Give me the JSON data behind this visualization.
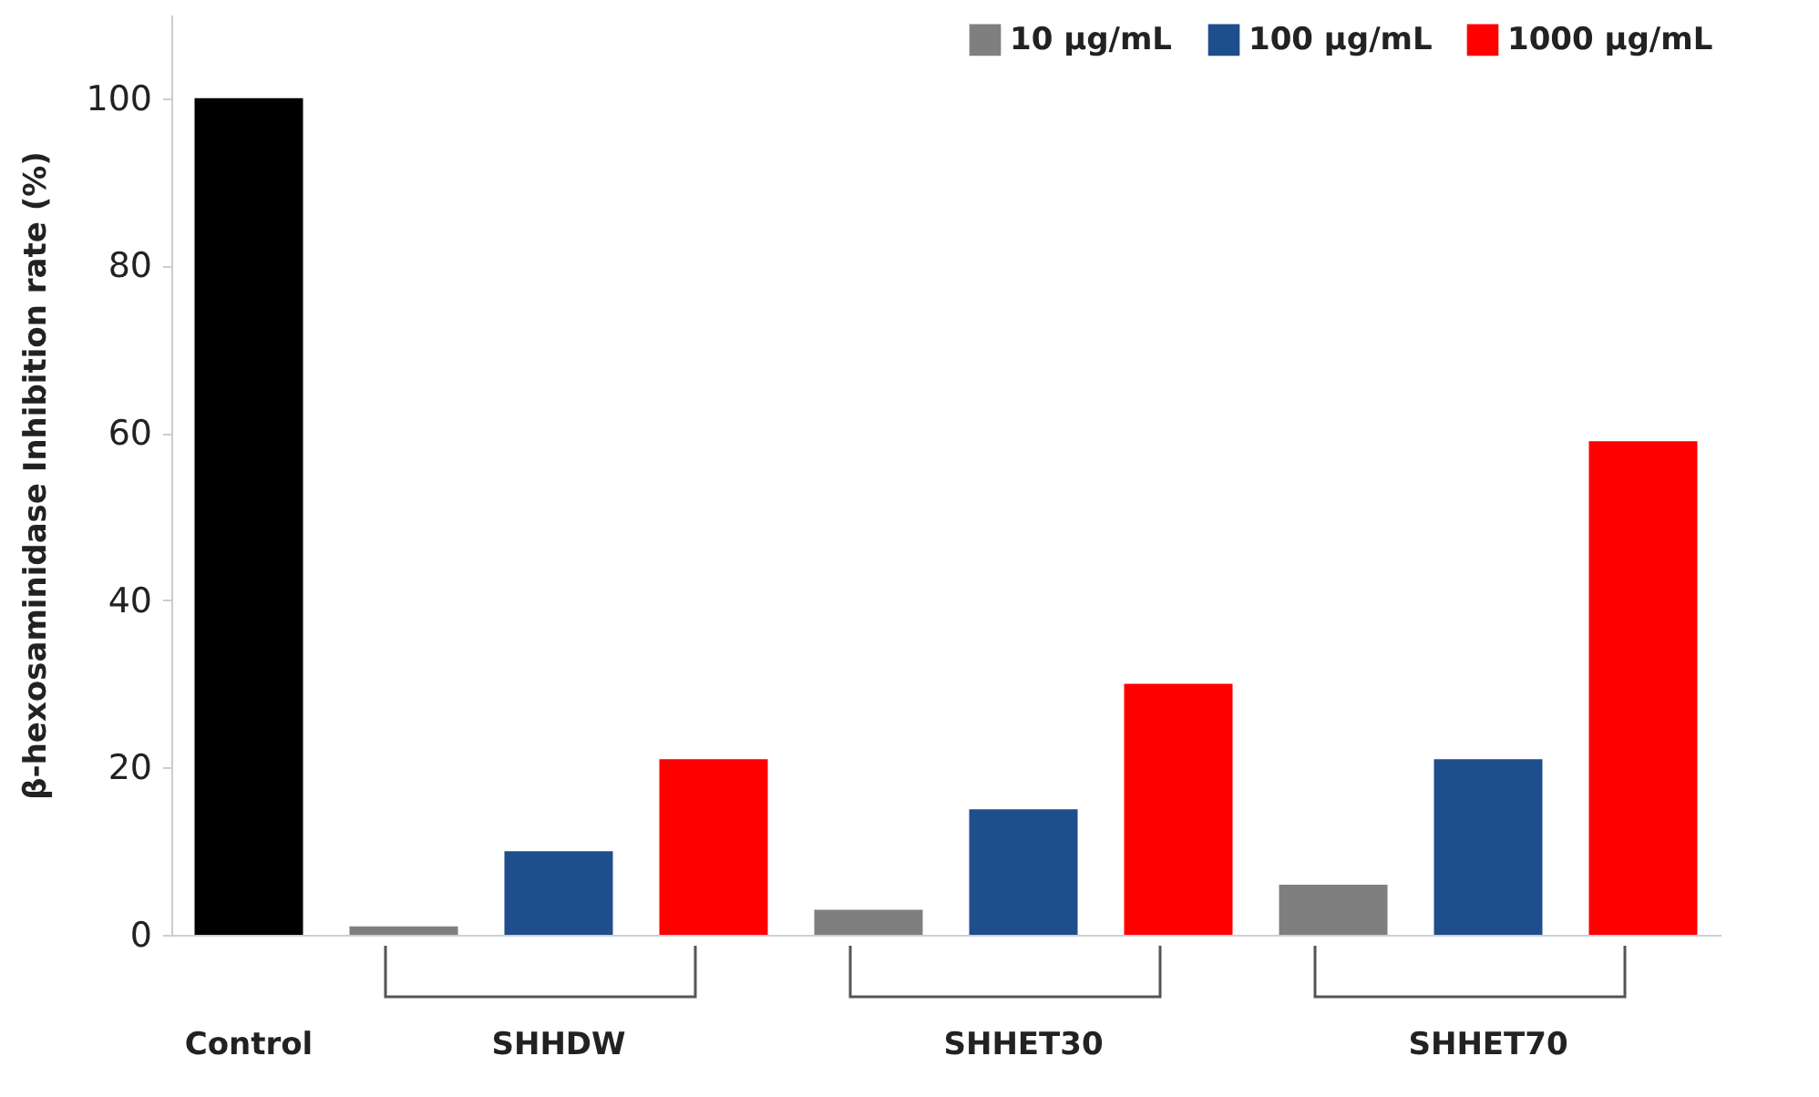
{
  "chart_data": {
    "type": "bar",
    "ylabel": "β-hexosaminidase Inhibition rate (%)",
    "categories": [
      "Control",
      null,
      "SHHDW",
      null,
      null,
      "SHHET30",
      null,
      null,
      "SHHET70",
      null
    ],
    "series": [
      {
        "color": "#000000",
        "values": [
          100,
          null,
          null,
          null,
          null,
          null,
          null,
          null,
          null,
          null
        ]
      },
      {
        "name": "10 µg/mL",
        "color": "#7f7f7f",
        "values": [
          null,
          1,
          null,
          null,
          3,
          null,
          null,
          6,
          null,
          null
        ]
      },
      {
        "name": "100 µg/mL",
        "color": "#1f4e8c",
        "values": [
          null,
          null,
          10,
          null,
          null,
          15,
          null,
          null,
          21,
          null
        ]
      },
      {
        "name": "1000 µg/mL",
        "color": "#ff0000",
        "values": [
          null,
          null,
          null,
          21,
          null,
          null,
          30,
          null,
          null,
          59
        ]
      }
    ],
    "ylim": [
      0,
      110
    ],
    "yticks": [
      0,
      20,
      40,
      60,
      80,
      100
    ],
    "legend": "top right"
  }
}
